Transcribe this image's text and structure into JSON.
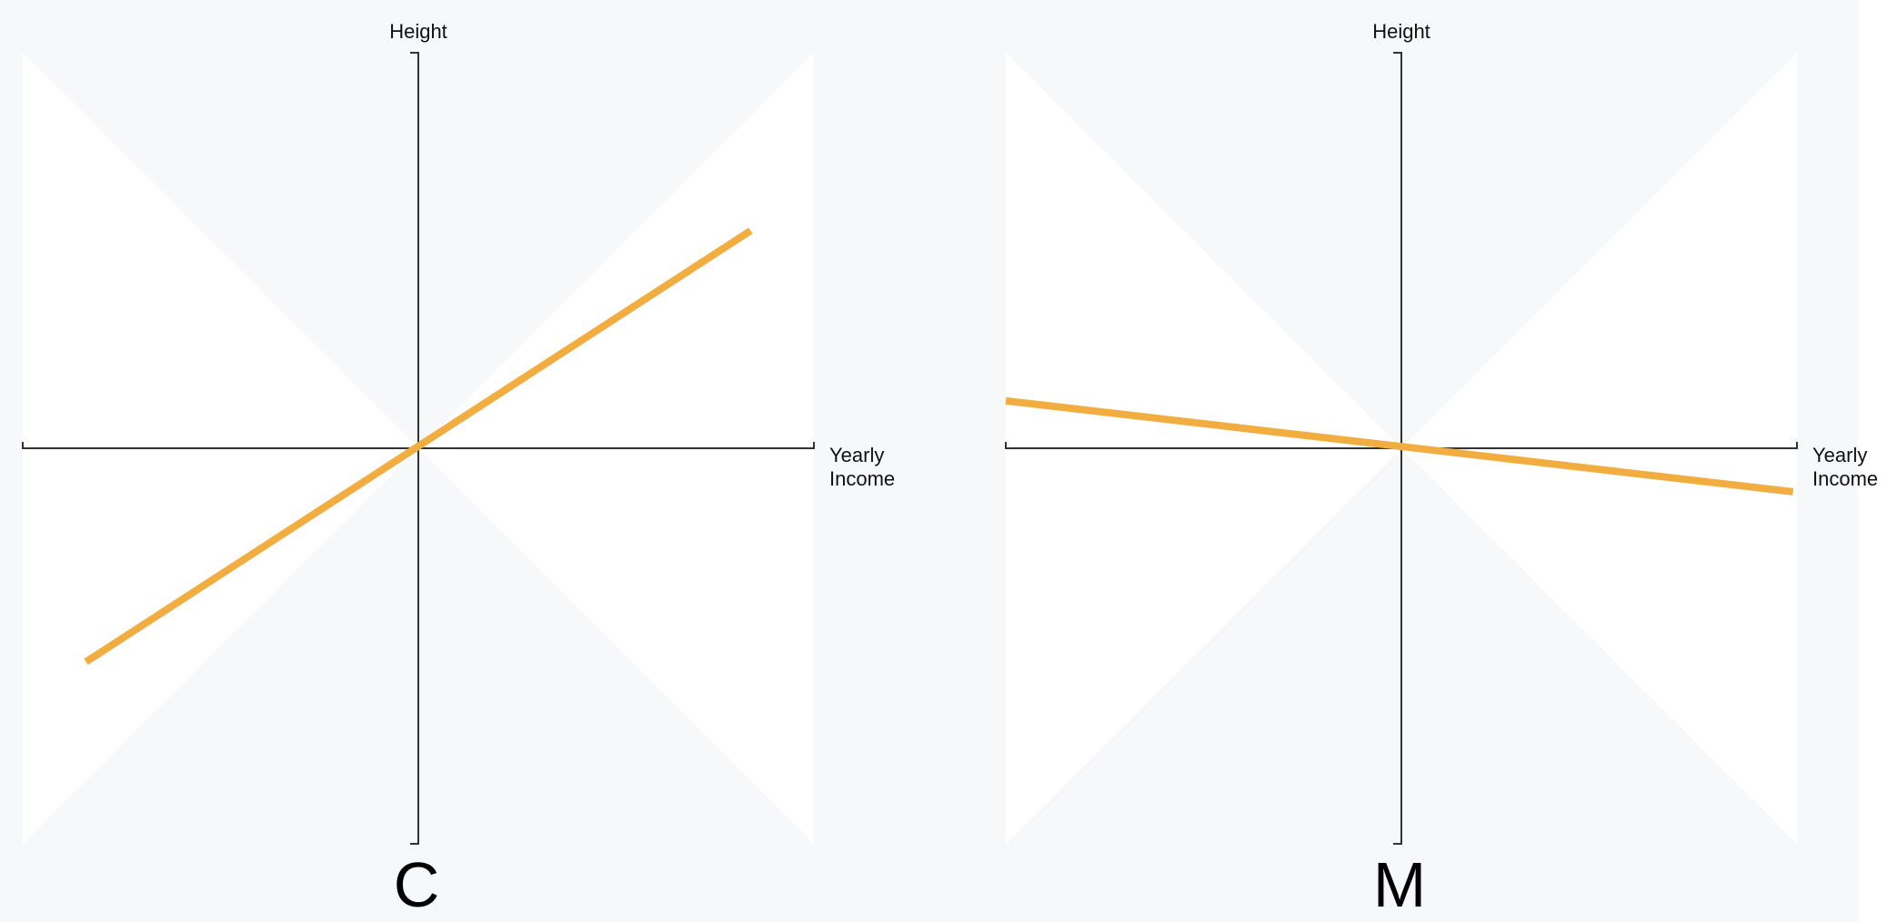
{
  "chart_data": [
    {
      "type": "line",
      "panel_label": "C",
      "xlabel": [
        "Yearly",
        "Income"
      ],
      "ylabel": "Height",
      "xlim": [
        -1,
        1
      ],
      "ylim": [
        -1,
        1
      ],
      "series": [
        {
          "x": [
            -0.84,
            0.84
          ],
          "y": [
            -0.54,
            0.55
          ]
        }
      ],
      "line_color": "#f2ad40",
      "grid": false
    },
    {
      "type": "line",
      "panel_label": "M",
      "xlabel": [
        "Yearly",
        "Income"
      ],
      "ylabel": "Height",
      "xlim": [
        -1,
        1
      ],
      "ylim": [
        -1,
        1
      ],
      "series": [
        {
          "x": [
            -1,
            0.99
          ],
          "y": [
            0.12,
            -0.11
          ]
        }
      ],
      "line_color": "#f2ad40",
      "grid": false
    }
  ],
  "colors": {
    "background": "#f7f8fa",
    "quadrant_fill": "#ffffff",
    "axis": "#333333",
    "line": "#f2ad40"
  }
}
